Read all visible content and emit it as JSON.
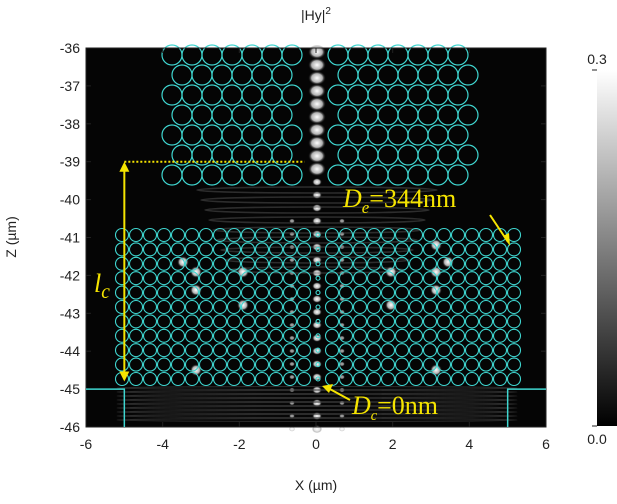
{
  "chart_data": {
    "type": "heatmap",
    "title": "|Hy|",
    "title_superscript": "2",
    "x_label": "X (µm)",
    "y_label": "Z (µm)",
    "xlim": [
      -6,
      6
    ],
    "xticks": [
      -6,
      -4,
      -2,
      0,
      2,
      4,
      6
    ],
    "ylim": [
      -46,
      -36
    ],
    "yticks": [
      -36,
      -37,
      -38,
      -39,
      -40,
      -41,
      -42,
      -43,
      -44,
      -45,
      -46
    ],
    "colorbar": {
      "lim": [
        0,
        0.3
      ],
      "ticks": [
        {
          "value": 0,
          "label": "0.0"
        },
        0.3
      ]
    },
    "annotations": [
      {
        "symbol": "D",
        "subscript": "e",
        "text": "=344nm"
      },
      {
        "symbol": "D",
        "subscript": "c",
        "text": "=0nm"
      },
      {
        "symbol": "l",
        "subscript": "c"
      }
    ]
  }
}
